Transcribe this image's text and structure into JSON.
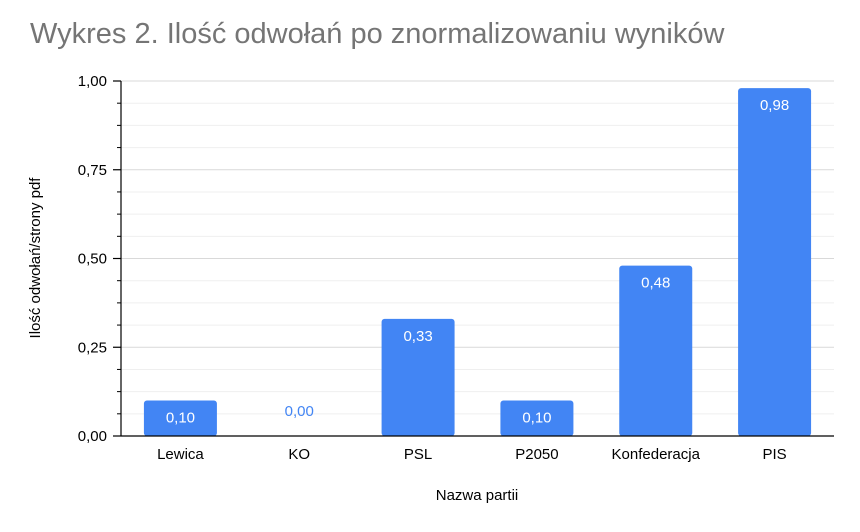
{
  "chart_data": {
    "type": "bar",
    "title": "Wykres 2. Ilość odwołań po znormalizowaniu wyników",
    "xlabel": "Nazwa partii",
    "ylabel": "Ilość odwołań/strony pdf",
    "categories": [
      "Lewica",
      "KO",
      "PSL",
      "P2050",
      "Konfederacja",
      "PIS"
    ],
    "values": [
      0.1,
      0.0,
      0.33,
      0.1,
      0.48,
      0.98
    ],
    "data_labels": [
      "0,10",
      "0,00",
      "0,33",
      "0,10",
      "0,48",
      "0,98"
    ],
    "ylim": [
      0,
      1
    ],
    "yticks": [
      0,
      0.25,
      0.5,
      0.75,
      1
    ],
    "ytick_labels": [
      "0,00",
      "0,25",
      "0,50",
      "0,75",
      "1,00"
    ],
    "grid": true,
    "legend": "none",
    "colors": {
      "bar": "#4285f4",
      "label_inside": "#ffffff",
      "label_outside": "#4285f4",
      "grid": "#d9d9d9",
      "axis": "#000000",
      "title": "#757575"
    }
  }
}
